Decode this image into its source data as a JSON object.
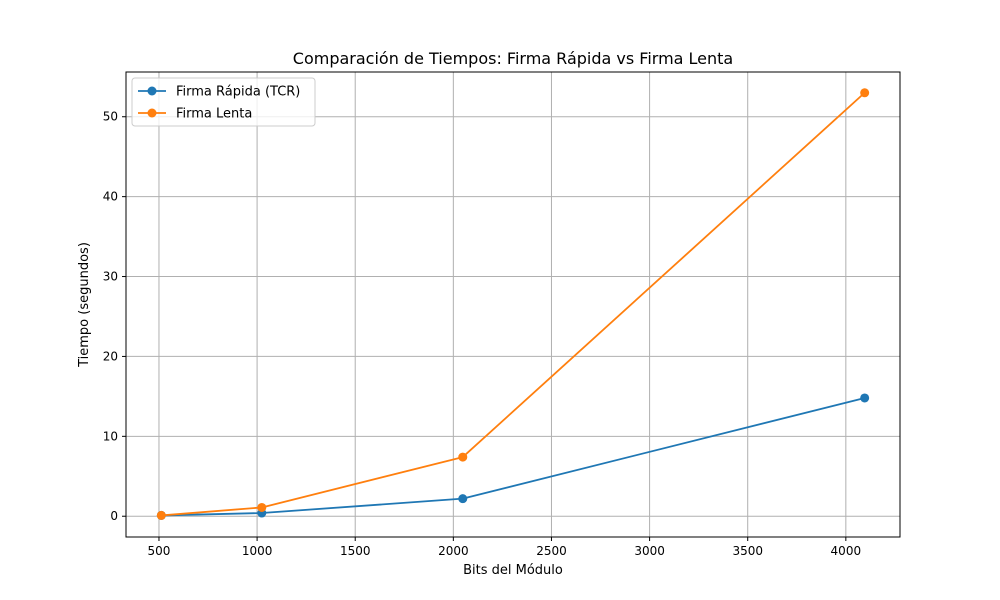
{
  "chart_data": {
    "type": "line",
    "title": "Comparación de Tiempos: Firma Rápida vs Firma Lenta",
    "xlabel": "Bits del Módulo",
    "ylabel": "Tiempo (segundos)",
    "x": [
      512,
      1024,
      2048,
      4096
    ],
    "series": [
      {
        "name": "Firma Rápida (TCR)",
        "values": [
          0.1,
          0.4,
          2.2,
          14.8
        ],
        "color": "#1f77b4"
      },
      {
        "name": "Firma Lenta",
        "values": [
          0.1,
          1.1,
          7.4,
          53.0
        ],
        "color": "#ff7f0e"
      }
    ],
    "xlim": [
      332,
      4276
    ],
    "ylim": [
      -2.6,
      55.6
    ],
    "xticks": [
      500,
      1000,
      1500,
      2000,
      2500,
      3000,
      3500,
      4000
    ],
    "yticks": [
      0,
      10,
      20,
      30,
      40,
      50
    ],
    "grid": true,
    "legend_position": "top-left",
    "markers": true
  }
}
